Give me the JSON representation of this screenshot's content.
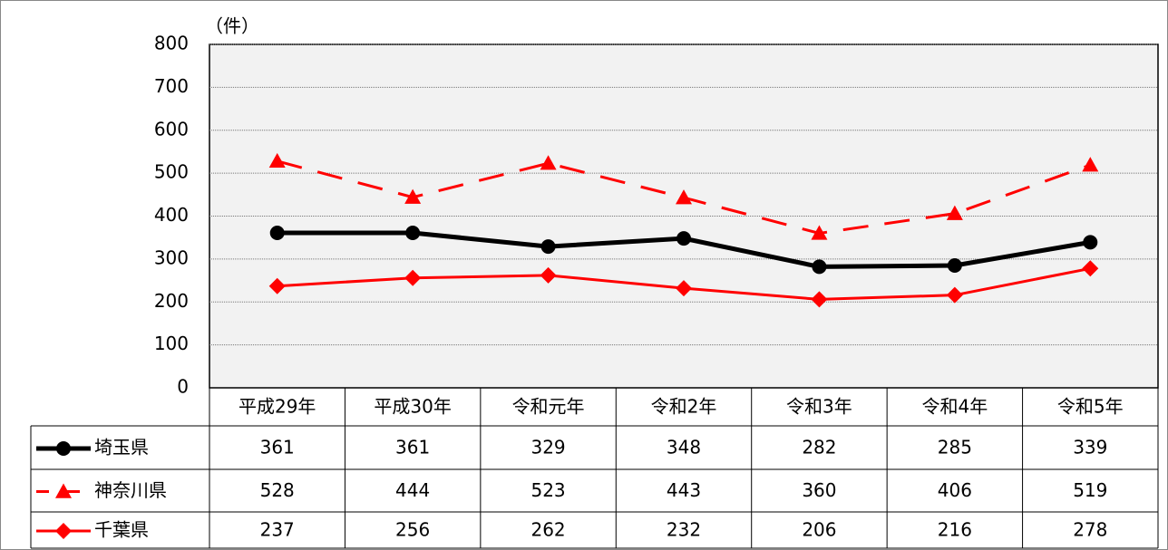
{
  "chart_data": {
    "type": "line",
    "y_unit": "（件）",
    "categories": [
      "平成29年",
      "平成30年",
      "令和元年",
      "令和2年",
      "令和3年",
      "令和4年",
      "令和5年"
    ],
    "series": [
      {
        "name": "埼玉県",
        "color": "#000000",
        "line_style": "solid",
        "marker": "circle",
        "values": [
          361,
          361,
          329,
          348,
          282,
          285,
          339
        ]
      },
      {
        "name": "神奈川県",
        "color": "#ff0000",
        "line_style": "dashed",
        "marker": "triangle",
        "values": [
          528,
          444,
          523,
          443,
          360,
          406,
          519
        ]
      },
      {
        "name": "千葉県",
        "color": "#ff0000",
        "line_style": "solid",
        "marker": "diamond",
        "values": [
          237,
          256,
          262,
          232,
          206,
          216,
          278
        ]
      }
    ],
    "ylim": [
      0,
      800
    ],
    "yticks": [
      0,
      100,
      200,
      300,
      400,
      500,
      600,
      700,
      800
    ],
    "grid": true
  }
}
